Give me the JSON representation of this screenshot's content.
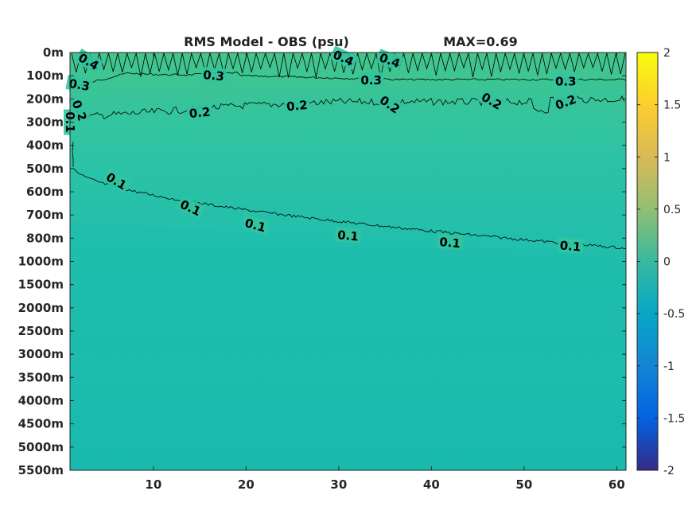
{
  "chart_data": {
    "type": "contour",
    "title": "RMS Model - OBS (psu)",
    "max_label": "MAX=0.69",
    "x_range": [
      1,
      61
    ],
    "x_ticks": [
      "10",
      "20",
      "30",
      "40",
      "50",
      "60"
    ],
    "y_ticks": [
      "0m",
      "100m",
      "200m",
      "300m",
      "400m",
      "500m",
      "600m",
      "700m",
      "800m",
      "1000m",
      "1500m",
      "2000m",
      "2500m",
      "3000m",
      "3500m",
      "4000m",
      "4500m",
      "5000m",
      "5500m"
    ],
    "colorbar": {
      "range": [
        -2,
        2
      ],
      "ticks": [
        "2",
        "1.5",
        "1",
        "0.5",
        "0",
        "-0.5",
        "-1",
        "-1.5",
        "-2"
      ],
      "colormap": "parula"
    },
    "field_colors": {
      "surface": "#45c48a",
      "upper": "#33c4a0",
      "mid": "#22bfac",
      "deep": "#19baae"
    },
    "contour_levels": [
      "0.4",
      "0.3",
      "0.2",
      "0.1"
    ],
    "contour_labels": [
      {
        "text": "0.4",
        "x": 3.0,
        "depth_index": 0.4,
        "rot": 30
      },
      {
        "text": "0.4",
        "x": 30.5,
        "depth_index": 0.25,
        "rot": 25
      },
      {
        "text": "0.4",
        "x": 35.5,
        "depth_index": 0.35,
        "rot": 20
      },
      {
        "text": "0.3",
        "x": 2.0,
        "depth_index": 1.4,
        "rot": 10
      },
      {
        "text": "0.3",
        "x": 16.5,
        "depth_index": 1.0,
        "rot": 5
      },
      {
        "text": "0.3",
        "x": 33.5,
        "depth_index": 1.2,
        "rot": 0
      },
      {
        "text": "0.3",
        "x": 54.5,
        "depth_index": 1.25,
        "rot": 0
      },
      {
        "text": "0.2",
        "x": 2.0,
        "depth_index": 2.5,
        "rot": 70
      },
      {
        "text": "0.2",
        "x": 15.0,
        "depth_index": 2.6,
        "rot": -5
      },
      {
        "text": "0.2",
        "x": 25.5,
        "depth_index": 2.3,
        "rot": -5
      },
      {
        "text": "0.2",
        "x": 35.5,
        "depth_index": 2.25,
        "rot": 35
      },
      {
        "text": "0.2",
        "x": 46.5,
        "depth_index": 2.1,
        "rot": 30
      },
      {
        "text": "0.2",
        "x": 54.5,
        "depth_index": 2.15,
        "rot": -20
      },
      {
        "text": "0.1",
        "x": 1.0,
        "depth_index": 3.0,
        "rot": 90
      },
      {
        "text": "0.1",
        "x": 6.0,
        "depth_index": 5.55,
        "rot": 30
      },
      {
        "text": "0.1",
        "x": 14.0,
        "depth_index": 6.7,
        "rot": 25
      },
      {
        "text": "0.1",
        "x": 21.0,
        "depth_index": 7.45,
        "rot": 15
      },
      {
        "text": "0.1",
        "x": 31.0,
        "depth_index": 7.9,
        "rot": 5
      },
      {
        "text": "0.1",
        "x": 42.0,
        "depth_index": 8.2,
        "rot": 5
      },
      {
        "text": "0.1",
        "x": 55.0,
        "depth_index": 8.35,
        "rot": 5
      }
    ]
  }
}
